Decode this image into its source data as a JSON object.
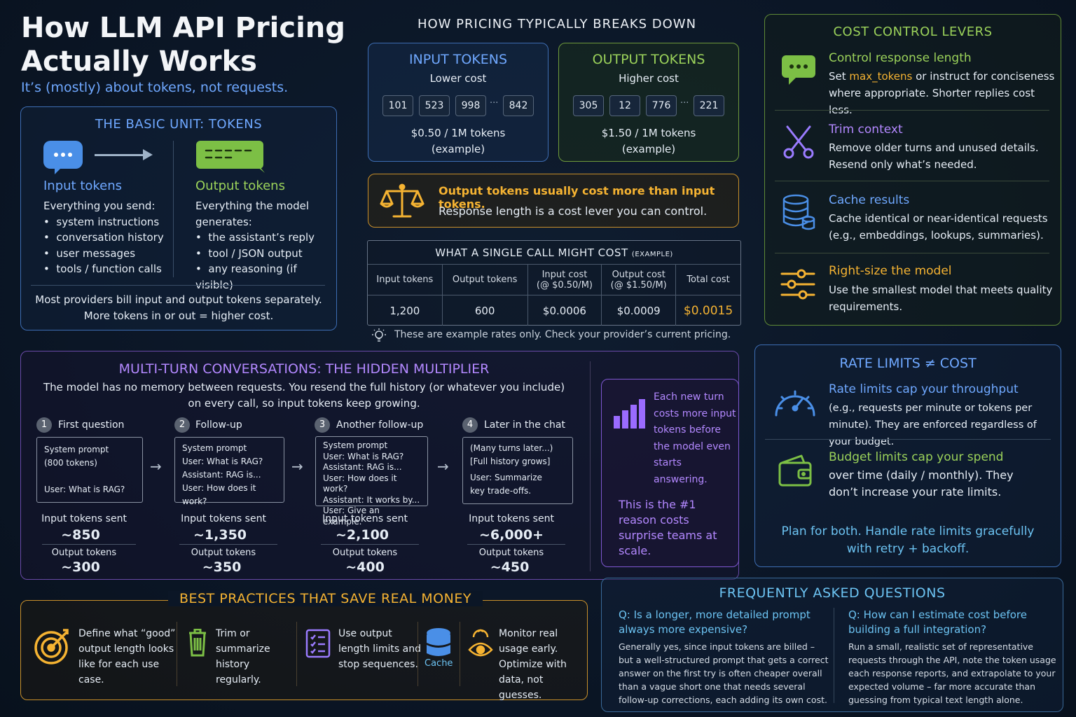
{
  "header": {
    "title": "How LLM API Pricing Actually Works",
    "subtitle": "It’s (mostly) about tokens, not requests."
  },
  "basic_unit": {
    "title": "THE BASIC UNIT: TOKENS",
    "input": {
      "heading": "Input tokens",
      "intro": "Everything you send:",
      "items": [
        "system instructions",
        "conversation history",
        "user messages",
        "tools / function calls"
      ]
    },
    "output": {
      "heading": "Output tokens",
      "intro": "Everything the model generates:",
      "items": [
        "the assistant’s reply",
        "tool / JSON output",
        "any reasoning (if visible)"
      ]
    },
    "footer_line1": "Most providers bill input and output tokens separately.",
    "footer_line2": "More tokens in or out = higher cost."
  },
  "pricing": {
    "title": "HOW PRICING TYPICALLY BREAKS DOWN",
    "input": {
      "title": "INPUT TOKENS",
      "subtitle": "Lower cost",
      "tokens": [
        "101",
        "523",
        "998",
        "842"
      ],
      "ellipsis": "···",
      "price": "$0.50 / 1M tokens",
      "note": "(example)"
    },
    "output": {
      "title": "OUTPUT TOKENS",
      "subtitle": "Higher cost",
      "tokens": [
        "305",
        "12",
        "776",
        "221"
      ],
      "ellipsis": "···",
      "price": "$1.50 / 1M tokens",
      "note": "(example)"
    }
  },
  "notice": {
    "headline": "Output tokens usually cost more than input tokens.",
    "body": "Response length is a cost lever you can control."
  },
  "single_call": {
    "title": "WHAT A SINGLE CALL MIGHT COST",
    "title_suffix": "(EXAMPLE)",
    "headers": [
      "Input tokens",
      "Output tokens",
      "Input cost",
      "Output cost",
      "Total cost"
    ],
    "header_rates": [
      "",
      "",
      "(@ $0.50/M)",
      "(@ $1.50/M)",
      ""
    ],
    "values": [
      "1,200",
      "600",
      "$0.0006",
      "$0.0009",
      "$0.0015"
    ],
    "note": "These are example rates only. Check your provider’s current pricing."
  },
  "levers": {
    "title": "COST CONTROL LEVERS",
    "items": [
      {
        "heading": "Control response length",
        "body_pre": "Set ",
        "code": "max_tokens",
        "body_post": " or instruct for conciseness where appropriate. Shorter replies cost less.",
        "icon": "chat-bubble-icon"
      },
      {
        "heading": "Trim context",
        "body": "Remove older turns and unused details. Resend only what’s needed.",
        "icon": "scissors-icon"
      },
      {
        "heading": "Cache results",
        "body": "Cache identical or near-identical requests (e.g., embeddings, lookups, summaries).",
        "icon": "database-icon"
      },
      {
        "heading": "Right-size the model",
        "body": "Use the smallest model that meets quality requirements.",
        "icon": "sliders-icon"
      }
    ]
  },
  "multi_turn": {
    "title": "MULTI-TURN CONVERSATIONS: THE HIDDEN MULTIPLIER",
    "description_line1": "The model has no memory between requests. You resend the full history (or whatever you include)",
    "description_line2": "on every call, so input tokens keep growing.",
    "sent_label": "Input tokens sent",
    "out_label": "Output tokens",
    "steps": [
      {
        "num": "1",
        "label": "First question",
        "lines": [
          "System prompt",
          "(800 tokens)",
          "",
          "User: What is RAG?"
        ],
        "sent": "~850",
        "out": "~300"
      },
      {
        "num": "2",
        "label": "Follow-up",
        "lines": [
          "System prompt",
          "User: What is RAG?",
          "Assistant: RAG is...",
          "User: How does it work?"
        ],
        "sent": "~1,350",
        "out": "~350"
      },
      {
        "num": "3",
        "label": "Another follow-up",
        "lines": [
          "System prompt",
          "User: What is RAG?",
          "Assistant: RAG is...",
          "User: How does it work?",
          "Assistant: It works by...",
          "User: Give an example."
        ],
        "sent": "~2,100",
        "out": "~400"
      },
      {
        "num": "4",
        "label": "Later in the chat",
        "lines": [
          "(Many turns later...)",
          "[Full history grows]",
          "User: Summarize",
          "key trade-offs."
        ],
        "sent": "~6,000+",
        "out": "~450"
      }
    ],
    "side_text": "Each new turn costs more input tokens before the model even starts answering.",
    "side_emphasis": "This is the #1 reason costs surprise teams at scale."
  },
  "rate_limits": {
    "title": "RATE LIMITS ≠ COST",
    "items": [
      {
        "heading": "Rate limits cap your throughput",
        "body": "(e.g., requests per minute or tokens per minute). They are enforced regardless of your budget.",
        "icon": "gauge-icon"
      },
      {
        "heading": "Budget limits cap your spend",
        "body": "over time (daily / monthly). They don’t increase your rate limits.",
        "icon": "wallet-icon"
      }
    ],
    "footer_line1": "Plan for both. Handle rate limits gracefully",
    "footer_line2": "with retry + backoff."
  },
  "best_practices": {
    "title": "BEST PRACTICES THAT SAVE REAL MONEY",
    "items": [
      {
        "text": "Define what “good” output length looks like for each use case.",
        "icon": "target-icon"
      },
      {
        "text": "Trim or summarize history regularly.",
        "icon": "trash-icon"
      },
      {
        "text": "Use output length limits and stop sequences.",
        "icon": "checklist-icon"
      },
      {
        "icon_label": "Cache",
        "icon": "cache-icon"
      },
      {
        "text": "Monitor real usage early. Optimize with data, not guesses.",
        "icon": "eye-icon"
      }
    ]
  },
  "faq": {
    "title": "FREQUENTLY ASKED QUESTIONS",
    "items": [
      {
        "q": "Q: Is a longer, more detailed prompt always more expensive?",
        "a": "Generally yes, since input tokens are billed – but a well-structured prompt that gets a correct answer on the first try is often cheaper overall than a vague short one that needs several follow-up corrections, each adding its own cost."
      },
      {
        "q": "Q: How can I estimate cost before building a full integration?",
        "a": "Run a small, realistic set of representative requests through the API, note the token usage each response reports, and extrapolate to your expected volume – far more accurate than guessing from typical text length alone."
      }
    ]
  },
  "colors": {
    "blue": "#6fa8ff",
    "green": "#9bd25a",
    "purple": "#b388ff",
    "orange": "#f5b332",
    "cyan": "#6cc3f2",
    "background": "#0b1626"
  }
}
